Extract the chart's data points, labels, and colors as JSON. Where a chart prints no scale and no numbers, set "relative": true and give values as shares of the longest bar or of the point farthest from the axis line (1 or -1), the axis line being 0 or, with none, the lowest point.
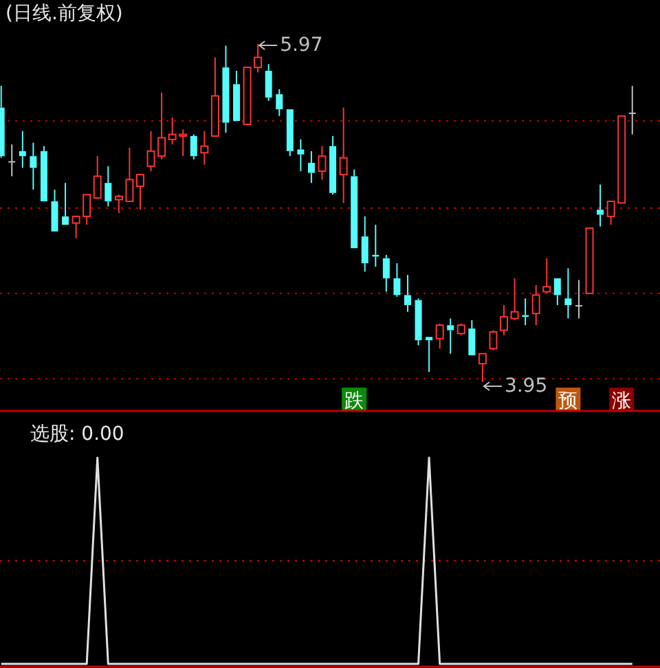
{
  "chart_data": [
    {
      "type": "candlestick",
      "title": "(日线.前复权)",
      "categories": [
        null,
        null,
        null,
        null,
        null,
        null,
        null,
        null,
        null,
        null,
        null,
        null,
        null,
        null,
        null,
        null,
        null,
        null,
        null,
        null,
        null,
        null,
        null,
        null,
        null,
        null,
        null,
        null,
        null,
        null,
        null,
        null,
        null,
        null,
        null,
        null,
        null,
        null,
        null,
        null,
        null,
        null,
        null,
        null,
        null,
        null,
        null,
        null,
        null,
        null,
        null,
        null,
        null,
        null,
        null,
        null,
        null,
        null,
        null,
        null
      ],
      "ohlc": [
        [
          5.59,
          5.72,
          5.29,
          5.3
        ],
        [
          5.27,
          5.37,
          5.18,
          5.27
        ],
        [
          5.33,
          5.45,
          5.23,
          5.3
        ],
        [
          5.3,
          5.38,
          5.1,
          5.23
        ],
        [
          5.33,
          5.36,
          5.03,
          5.03
        ],
        [
          5.03,
          5.1,
          4.85,
          4.85
        ],
        [
          4.94,
          5.14,
          4.89,
          4.89
        ],
        [
          4.9,
          4.94,
          4.81,
          4.94
        ],
        [
          4.94,
          5.07,
          4.89,
          5.07
        ],
        [
          5.05,
          5.3,
          5.05,
          5.18
        ],
        [
          5.14,
          5.24,
          5.0,
          5.03
        ],
        [
          5.04,
          5.07,
          4.96,
          5.06
        ],
        [
          5.03,
          5.35,
          5.03,
          5.16
        ],
        [
          5.12,
          5.19,
          4.98,
          5.19
        ],
        [
          5.24,
          5.45,
          5.21,
          5.33
        ],
        [
          5.3,
          5.68,
          5.28,
          5.41
        ],
        [
          5.4,
          5.53,
          5.37,
          5.43
        ],
        [
          5.42,
          5.46,
          5.3,
          5.43
        ],
        [
          5.42,
          5.43,
          5.28,
          5.3
        ],
        [
          5.32,
          5.45,
          5.25,
          5.36
        ],
        [
          5.42,
          5.89,
          5.42,
          5.66
        ],
        [
          5.83,
          5.96,
          5.44,
          5.5
        ],
        [
          5.73,
          5.81,
          5.51,
          5.51
        ],
        [
          5.49,
          5.83,
          5.49,
          5.83
        ],
        [
          5.83,
          5.97,
          5.8,
          5.89
        ],
        [
          5.81,
          5.85,
          5.63,
          5.65
        ],
        [
          5.67,
          5.7,
          5.54,
          5.58
        ],
        [
          5.58,
          5.58,
          5.3,
          5.33
        ],
        [
          5.34,
          5.4,
          5.21,
          5.31
        ],
        [
          5.26,
          5.33,
          5.14,
          5.2
        ],
        [
          5.21,
          5.36,
          5.16,
          5.3
        ],
        [
          5.36,
          5.42,
          5.07,
          5.08
        ],
        [
          5.19,
          5.59,
          5.02,
          5.29
        ],
        [
          5.18,
          5.22,
          4.75,
          4.75
        ],
        [
          4.82,
          4.94,
          4.61,
          4.66
        ],
        [
          4.71,
          4.89,
          4.64,
          4.7
        ],
        [
          4.69,
          4.71,
          4.49,
          4.57
        ],
        [
          4.57,
          4.66,
          4.46,
          4.47
        ],
        [
          4.47,
          4.59,
          4.37,
          4.41
        ],
        [
          4.44,
          4.45,
          4.17,
          4.2
        ],
        [
          4.22,
          4.22,
          4.01,
          4.2
        ],
        [
          4.21,
          4.3,
          4.15,
          4.29
        ],
        [
          4.29,
          4.33,
          4.12,
          4.26
        ],
        [
          4.24,
          4.3,
          4.23,
          4.29
        ],
        [
          4.27,
          4.32,
          4.11,
          4.11
        ],
        [
          4.06,
          4.12,
          3.95,
          4.12
        ],
        [
          4.15,
          4.26,
          4.14,
          4.25
        ],
        [
          4.26,
          4.41,
          4.23,
          4.34
        ],
        [
          4.33,
          4.57,
          4.32,
          4.37
        ],
        [
          4.35,
          4.45,
          4.29,
          4.34
        ],
        [
          4.36,
          4.53,
          4.29,
          4.47
        ],
        [
          4.49,
          4.69,
          4.48,
          4.52
        ],
        [
          4.57,
          4.57,
          4.41,
          4.47
        ],
        [
          4.45,
          4.63,
          4.33,
          4.41
        ],
        [
          4.41,
          4.56,
          4.33,
          4.41
        ],
        [
          4.48,
          4.87,
          4.48,
          4.87
        ],
        [
          4.98,
          5.13,
          4.88,
          4.95
        ],
        [
          4.94,
          5.03,
          4.89,
          5.03
        ],
        [
          5.02,
          5.54,
          5.02,
          5.54
        ],
        [
          5.56,
          5.72,
          5.43,
          5.56
        ]
      ],
      "colors": [
        "#54fcfc",
        "#c0c0c0",
        "#54fcfc",
        "#54fcfc",
        "#54fcfc",
        "#54fcfc",
        "#54fcfc",
        "#ff3232",
        "#ff3232",
        "#ff3232",
        "#54fcfc",
        "#ff3232",
        "#ff3232",
        "#ff3232",
        "#ff3232",
        "#ff3232",
        "#ff3232",
        "#ff3232",
        "#54fcfc",
        "#ff3232",
        "#ff3232",
        "#54fcfc",
        "#54fcfc",
        "#ff3232",
        "#ff3232",
        "#54fcfc",
        "#54fcfc",
        "#54fcfc",
        "#54fcfc",
        "#54fcfc",
        "#ff3232",
        "#54fcfc",
        "#ff3232",
        "#54fcfc",
        "#54fcfc",
        "#54fcfc",
        "#54fcfc",
        "#54fcfc",
        "#54fcfc",
        "#54fcfc",
        "#54fcfc",
        "#ff3232",
        "#54fcfc",
        "#ff3232",
        "#54fcfc",
        "#ff3232",
        "#ff3232",
        "#ff3232",
        "#ff3232",
        "#54fcfc",
        "#ff3232",
        "#ff3232",
        "#54fcfc",
        "#54fcfc",
        "#c0c0c0",
        "#ff3232",
        "#54fcfc",
        "#ff3232",
        "#ff3232",
        "#c0c0c0"
      ],
      "yticks": [
        {
          "value": 3.97,
          "label": null
        },
        {
          "value": 4.48,
          "label": null
        },
        {
          "value": 4.99,
          "label": null
        },
        {
          "value": 5.51,
          "label": null
        }
      ],
      "grid": "y",
      "annotations": [
        "5.97",
        "3.95",
        "跌",
        "预",
        "涨"
      ]
    },
    {
      "type": "line",
      "title": "选股: 0.00",
      "categories": [
        null,
        null,
        null,
        null,
        null,
        null,
        null,
        null,
        null,
        null,
        null,
        null,
        null,
        null,
        null,
        null,
        null,
        null,
        null,
        null,
        null,
        null,
        null,
        null,
        null,
        null,
        null,
        null,
        null,
        null,
        null,
        null,
        null,
        null,
        null,
        null,
        null,
        null,
        null,
        null,
        null,
        null,
        null,
        null,
        null,
        null,
        null,
        null,
        null,
        null,
        null,
        null,
        null,
        null,
        null,
        null,
        null,
        null,
        null,
        null
      ],
      "values": [
        0,
        0,
        0,
        0,
        0,
        0,
        0,
        0,
        0,
        1,
        0,
        0,
        0,
        0,
        0,
        0,
        0,
        0,
        0,
        0,
        0,
        0,
        0,
        0,
        0,
        0,
        0,
        0,
        0,
        0,
        0,
        0,
        0,
        0,
        0,
        0,
        0,
        0,
        0,
        0,
        1,
        0,
        0,
        0,
        0,
        0,
        0,
        0,
        0,
        0,
        0,
        0,
        0,
        0,
        0,
        0,
        0,
        0,
        0,
        0
      ],
      "color": "#e0e0e0",
      "relative": true,
      "ref_lines": [
        {
          "axis": "y",
          "value": 0.5,
          "color": "#c00000",
          "line_style": "dotted"
        }
      ]
    }
  ]
}
